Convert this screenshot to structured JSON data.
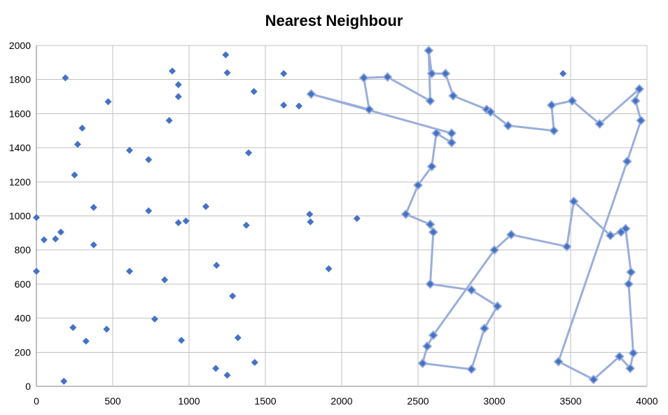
{
  "chart_data": {
    "type": "scatter",
    "title": "Nearest Neighbour",
    "xlabel": "",
    "ylabel": "",
    "xlim": [
      0,
      4000
    ],
    "ylim": [
      0,
      2000
    ],
    "x_ticks": [
      "0",
      "500",
      "1000",
      "1500",
      "2000",
      "2500",
      "3000",
      "3500",
      "4000"
    ],
    "y_ticks": [
      "0",
      "200",
      "400",
      "600",
      "800",
      "1000",
      "1200",
      "1400",
      "1600",
      "1800",
      "2000"
    ],
    "grid": true,
    "legend": "none",
    "colors": {
      "points": "#4472c4",
      "route": "#9aaedc",
      "grid": "#c0c0c0",
      "axis": "#808080"
    },
    "series": [
      {
        "kind": "points",
        "points": [
          [
            190,
            1810
          ],
          [
            470,
            1670
          ],
          [
            300,
            1515
          ],
          [
            270,
            1420
          ],
          [
            250,
            1240
          ],
          [
            375,
            1050
          ],
          [
            0,
            990
          ],
          [
            50,
            860
          ],
          [
            125,
            865
          ],
          [
            160,
            905
          ],
          [
            375,
            830
          ],
          [
            0,
            675
          ],
          [
            240,
            345
          ],
          [
            325,
            265
          ],
          [
            460,
            335
          ],
          [
            180,
            30
          ],
          [
            890,
            1850
          ],
          [
            930,
            1770
          ],
          [
            930,
            1700
          ],
          [
            870,
            1560
          ],
          [
            610,
            1385
          ],
          [
            735,
            1330
          ],
          [
            735,
            1030
          ],
          [
            930,
            960
          ],
          [
            980,
            970
          ],
          [
            610,
            675
          ],
          [
            840,
            625
          ],
          [
            775,
            395
          ],
          [
            950,
            270
          ],
          [
            1240,
            1945
          ],
          [
            1250,
            1840
          ],
          [
            1425,
            1730
          ],
          [
            1390,
            1370
          ],
          [
            1110,
            1055
          ],
          [
            1375,
            945
          ],
          [
            1180,
            710
          ],
          [
            1285,
            530
          ],
          [
            1320,
            285
          ],
          [
            1175,
            105
          ],
          [
            1250,
            65
          ],
          [
            1430,
            140
          ],
          [
            1620,
            1835
          ],
          [
            1620,
            1650
          ],
          [
            1720,
            1645
          ],
          [
            1790,
            1010
          ],
          [
            1795,
            965
          ],
          [
            1915,
            690
          ],
          [
            2100,
            985
          ],
          [
            3450,
            1835
          ]
        ]
      },
      {
        "kind": "route",
        "path": [
          [
            1800,
            1715
          ],
          [
            2180,
            1625
          ],
          [
            2145,
            1810
          ],
          [
            2300,
            1815
          ],
          [
            2580,
            1675
          ],
          [
            2570,
            1970
          ],
          [
            2590,
            1835
          ],
          [
            2680,
            1835
          ],
          [
            2730,
            1705
          ],
          [
            2950,
            1625
          ],
          [
            2975,
            1610
          ],
          [
            3090,
            1530
          ],
          [
            3390,
            1500
          ],
          [
            3375,
            1650
          ],
          [
            3510,
            1675
          ],
          [
            3690,
            1540
          ],
          [
            3950,
            1745
          ],
          [
            3925,
            1675
          ],
          [
            3960,
            1560
          ],
          [
            3870,
            1320
          ],
          [
            3420,
            145
          ],
          [
            3650,
            40
          ],
          [
            3820,
            175
          ],
          [
            3890,
            105
          ],
          [
            3910,
            195
          ],
          [
            3880,
            600
          ],
          [
            3895,
            670
          ],
          [
            3860,
            925
          ],
          [
            3830,
            905
          ],
          [
            3760,
            885
          ],
          [
            3520,
            1085
          ],
          [
            3475,
            820
          ],
          [
            3110,
            890
          ],
          [
            3000,
            800
          ],
          [
            2600,
            300
          ],
          [
            2560,
            235
          ],
          [
            2530,
            135
          ],
          [
            2850,
            100
          ],
          [
            2935,
            340
          ],
          [
            3020,
            470
          ],
          [
            2850,
            565
          ],
          [
            2580,
            600
          ],
          [
            2600,
            905
          ],
          [
            2580,
            950
          ],
          [
            2420,
            1010
          ],
          [
            2500,
            1180
          ],
          [
            2590,
            1290
          ],
          [
            2620,
            1485
          ],
          [
            2720,
            1430
          ],
          [
            2720,
            1485
          ],
          [
            1800,
            1715
          ]
        ]
      }
    ]
  }
}
